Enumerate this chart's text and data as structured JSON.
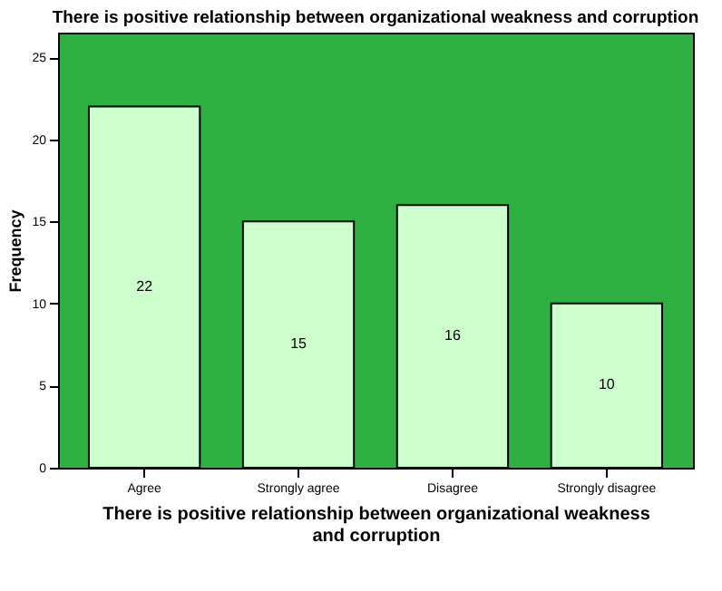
{
  "chart_data": {
    "type": "bar",
    "title": "There is positive relationship between organizational weakness and corruption",
    "xlabel": "There is positive relationship between organizational weakness and corruption",
    "ylabel": "Frequency",
    "categories": [
      "Agree",
      "Strongly agree",
      "Disagree",
      "Strongly disagree"
    ],
    "values": [
      22,
      15,
      16,
      10
    ],
    "color": "#ccffcc",
    "ylim": [
      0,
      26.5
    ],
    "yticks": [
      0,
      5,
      10,
      15,
      20,
      25
    ],
    "grid": false,
    "data_labels": true
  }
}
